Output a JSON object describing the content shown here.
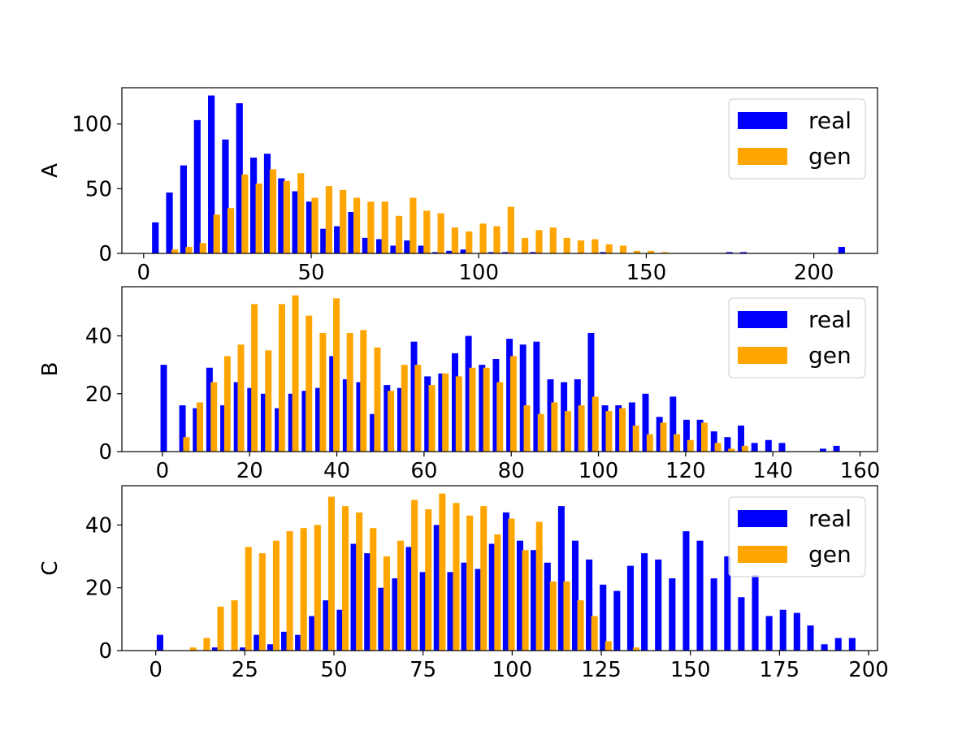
{
  "colors": {
    "real": "#0000ff",
    "gen": "#ffa500",
    "axes": "#000000",
    "legend_frame": "#cccccc"
  },
  "legend": {
    "position": "top-right",
    "entries": [
      "real",
      "gen"
    ]
  },
  "chart_data": [
    {
      "type": "bar",
      "ylabel": "A",
      "xlim": [
        -6.5,
        219
      ],
      "ylim": [
        0,
        128
      ],
      "grid": false,
      "xticks": [
        0,
        50,
        100,
        150,
        200
      ],
      "yticks": [
        0,
        50,
        100
      ],
      "bin_width": 4.18,
      "series": [
        {
          "name": "real",
          "x": [
            3.5,
            7.7,
            11.9,
            16.0,
            20.2,
            24.4,
            28.6,
            32.8,
            36.9,
            41.1,
            45.3,
            49.5,
            53.7,
            57.8,
            62.0,
            66.2,
            70.4,
            74.6,
            78.7,
            82.9,
            87.1,
            91.3,
            95.5,
            103.8,
            108.0,
            116.3,
            137.2,
            174.8,
            179.0,
            208.3
          ],
          "values": [
            24,
            47,
            68,
            103,
            122,
            88,
            116,
            74,
            77,
            58,
            48,
            40,
            19,
            21,
            32,
            12,
            11,
            6,
            10,
            6,
            1,
            2,
            3,
            1,
            1,
            1,
            1,
            1,
            1,
            5
          ]
        },
        {
          "name": "gen",
          "x": [
            9.3,
            13.5,
            17.7,
            21.8,
            26.0,
            30.2,
            34.4,
            38.6,
            42.7,
            46.9,
            51.1,
            55.3,
            59.5,
            63.6,
            67.8,
            72.0,
            76.2,
            80.4,
            84.5,
            88.7,
            92.9,
            97.1,
            101.3,
            105.4,
            109.6,
            113.8,
            118.0,
            122.2,
            126.3,
            130.5,
            134.7,
            138.9,
            143.1,
            147.2,
            151.4,
            155.6
          ],
          "values": [
            3,
            5,
            8,
            30,
            35,
            61,
            54,
            65,
            56,
            62,
            43,
            52,
            49,
            43,
            40,
            40,
            29,
            43,
            33,
            31,
            20,
            17,
            23,
            21,
            36,
            12,
            18,
            20,
            12,
            10,
            11,
            7,
            6,
            2,
            2,
            1
          ]
        }
      ]
    },
    {
      "type": "bar",
      "ylabel": "B",
      "xlim": [
        -9.3,
        164
      ],
      "ylim": [
        0,
        57
      ],
      "grid": false,
      "xticks": [
        0,
        20,
        40,
        60,
        80,
        100,
        120,
        140,
        160
      ],
      "yticks": [
        0,
        20,
        40
      ],
      "bin_width": 3.12,
      "series": [
        {
          "name": "real",
          "x": [
            0.3,
            4.6,
            7.7,
            10.8,
            14.0,
            17.1,
            20.2,
            23.3,
            26.5,
            29.6,
            32.7,
            35.8,
            39.0,
            42.1,
            45.2,
            48.3,
            51.5,
            54.6,
            57.7,
            60.8,
            64.0,
            67.1,
            70.2,
            73.3,
            76.5,
            79.6,
            82.7,
            85.8,
            89.0,
            92.1,
            95.2,
            98.3,
            101.5,
            104.6,
            107.7,
            110.8,
            114.0,
            117.1,
            120.2,
            123.3,
            126.5,
            129.6,
            132.7,
            135.8,
            139.0,
            142.1,
            151.5,
            154.6
          ],
          "values": [
            30,
            16,
            15,
            29,
            16,
            24,
            22,
            20,
            15,
            20,
            21,
            22,
            33,
            25,
            24,
            13,
            23,
            22,
            38,
            26,
            27,
            34,
            40,
            30,
            32,
            39,
            37,
            38,
            25,
            24,
            25,
            41,
            16,
            16,
            17,
            20,
            12,
            19,
            11,
            11,
            7,
            5,
            9,
            3,
            4,
            3,
            1,
            2
          ]
        },
        {
          "name": "gen",
          "x": [
            5.5,
            8.6,
            11.8,
            14.9,
            18.0,
            21.1,
            24.3,
            27.4,
            30.5,
            33.6,
            36.8,
            39.9,
            43.0,
            46.1,
            49.3,
            52.4,
            55.5,
            58.6,
            61.8,
            64.9,
            68.0,
            71.1,
            74.3,
            77.4,
            80.5,
            83.6,
            86.8,
            89.9,
            93.0,
            96.1,
            99.3,
            102.4,
            105.5,
            108.6,
            111.8,
            114.9,
            118.0,
            121.1,
            124.3,
            127.4,
            130.5,
            133.6
          ],
          "values": [
            5,
            17,
            24,
            33,
            37,
            51,
            35,
            51,
            54,
            47,
            41,
            53,
            41,
            42,
            36,
            21,
            30,
            30,
            23,
            27,
            26,
            29,
            29,
            24,
            33,
            16,
            13,
            17,
            14,
            16,
            19,
            14,
            15,
            9,
            6,
            10,
            6,
            4,
            10,
            3,
            1,
            2
          ]
        }
      ]
    },
    {
      "type": "bar",
      "ylabel": "C",
      "xlim": [
        -9.5,
        202.5
      ],
      "ylim": [
        0,
        52.5
      ],
      "grid": false,
      "xticks": [
        0,
        25,
        50,
        75,
        100,
        125,
        150,
        175,
        200
      ],
      "yticks": [
        0,
        20,
        40
      ],
      "bin_width": 3.88,
      "series": [
        {
          "name": "real",
          "x": [
            1.2,
            16.7,
            24.5,
            28.4,
            32.2,
            36.1,
            40.0,
            43.9,
            47.8,
            51.7,
            55.6,
            59.4,
            63.3,
            67.2,
            71.1,
            75.0,
            78.9,
            82.7,
            86.6,
            90.5,
            94.4,
            98.3,
            102.2,
            106.1,
            109.9,
            113.8,
            117.7,
            121.6,
            125.5,
            129.4,
            133.2,
            137.1,
            141.0,
            144.9,
            148.8,
            152.7,
            156.6,
            160.4,
            164.3,
            168.2,
            172.1,
            176.0,
            179.9,
            183.7,
            187.6,
            191.5,
            195.4
          ],
          "values": [
            5,
            1,
            1,
            5,
            2,
            6,
            5,
            11,
            16,
            13,
            34,
            31,
            20,
            23,
            33,
            25,
            40,
            25,
            28,
            26,
            34,
            44,
            35,
            32,
            28,
            46,
            35,
            29,
            21,
            19,
            27,
            31,
            29,
            23,
            38,
            35,
            23,
            30,
            17,
            24,
            11,
            13,
            12,
            8,
            2,
            4,
            4
          ]
        },
        {
          "name": "gen",
          "x": [
            10.5,
            14.3,
            18.2,
            22.1,
            26.0,
            29.9,
            33.8,
            37.6,
            41.5,
            45.4,
            49.3,
            53.2,
            57.1,
            61.0,
            64.8,
            68.7,
            72.6,
            76.5,
            80.4,
            84.3,
            88.1,
            92.0,
            95.9,
            99.8,
            103.7,
            107.6,
            111.5,
            115.3,
            119.2,
            123.1,
            127.0,
            134.8
          ],
          "values": [
            1,
            4,
            14,
            16,
            33,
            31,
            35,
            38,
            39,
            40,
            49,
            46,
            44,
            39,
            30,
            35,
            48,
            45,
            50,
            47,
            43,
            46,
            37,
            42,
            32,
            41,
            22,
            22,
            16,
            11,
            3,
            1
          ]
        }
      ]
    }
  ]
}
